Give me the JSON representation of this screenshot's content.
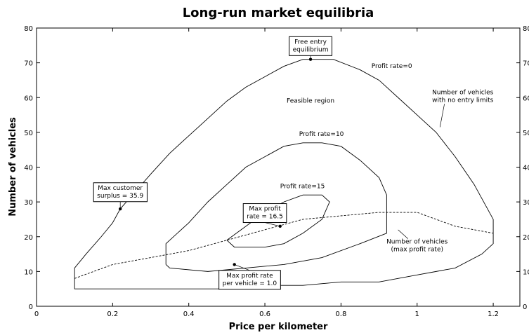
{
  "chart_data": {
    "type": "line",
    "title": "Long-run market equilibria",
    "xlabel": "Price per kilometer",
    "ylabel": "Number of vehicles",
    "xlim": [
      0,
      1.27
    ],
    "ylim": [
      0,
      80
    ],
    "xticks": [
      0,
      0.2,
      0.4,
      0.6,
      0.8,
      1,
      1.2
    ],
    "yticks": [
      0,
      10,
      20,
      30,
      40,
      50,
      60,
      70,
      80
    ],
    "y2lim": [
      0,
      80
    ],
    "y2ticks": [
      0,
      10,
      20,
      30,
      40,
      50,
      60,
      70,
      80
    ],
    "series": [
      {
        "name": "Profit rate=0",
        "color": "#000000",
        "dashed": false,
        "x": [
          0.1,
          0.1,
          0.13,
          0.17,
          0.2,
          0.22,
          0.26,
          0.3,
          0.35,
          0.4,
          0.45,
          0.5,
          0.55,
          0.6,
          0.65,
          0.7,
          0.78,
          0.85,
          0.9,
          0.95,
          1.0,
          1.05,
          1.1,
          1.15,
          1.2,
          1.2,
          1.17,
          1.1,
          1.05,
          1.0,
          0.9,
          0.8,
          0.7,
          0.6,
          0.5,
          0.3,
          0.1,
          0.1
        ],
        "values": [
          8,
          11,
          15,
          20,
          24,
          28,
          33,
          38,
          44,
          49,
          54,
          59,
          63,
          66,
          69,
          71,
          71,
          68,
          65,
          60,
          55,
          50,
          43,
          35,
          25,
          18,
          15,
          11,
          10,
          9,
          7,
          7,
          6,
          6,
          5,
          5,
          5,
          8
        ]
      },
      {
        "name": "Profit rate=10",
        "color": "#000000",
        "dashed": false,
        "x": [
          0.34,
          0.34,
          0.4,
          0.45,
          0.5,
          0.55,
          0.6,
          0.65,
          0.7,
          0.75,
          0.8,
          0.85,
          0.9,
          0.92,
          0.92,
          0.85,
          0.75,
          0.65,
          0.55,
          0.45,
          0.35,
          0.34
        ],
        "values": [
          12,
          18,
          24,
          30,
          35,
          40,
          43,
          46,
          47,
          47,
          46,
          42,
          37,
          32,
          21,
          18,
          14,
          12,
          11,
          10,
          11,
          12
        ]
      },
      {
        "name": "Profit rate=15",
        "color": "#000000",
        "dashed": false,
        "x": [
          0.5,
          0.55,
          0.6,
          0.65,
          0.7,
          0.75,
          0.77,
          0.75,
          0.7,
          0.65,
          0.6,
          0.52,
          0.5
        ],
        "values": [
          19,
          23,
          27,
          30,
          32,
          32,
          30,
          25,
          21,
          18,
          17,
          17,
          19
        ]
      },
      {
        "color": "#000000",
        "dashed": true,
        "x": [
          0.1,
          0.15,
          0.2,
          0.3,
          0.4,
          0.5,
          0.6,
          0.7,
          0.8,
          0.9,
          1.0,
          1.05,
          1.1,
          1.2
        ],
        "values": [
          8,
          10,
          12,
          14,
          16,
          19,
          22,
          25,
          26,
          27,
          27,
          25,
          23,
          21
        ]
      }
    ],
    "points": [
      {
        "x": 0.22,
        "y": 28,
        "label": [
          "Max customer",
          "surplus = 35.9"
        ]
      },
      {
        "x": 0.72,
        "y": 71,
        "label": [
          "Free entry",
          "equilibrium"
        ]
      },
      {
        "x": 0.64,
        "y": 23,
        "label": [
          "Max profit",
          "rate = 16.5"
        ]
      },
      {
        "x": 0.52,
        "y": 12,
        "label": [
          "Max profit rate",
          "per vehicle = 1.0"
        ]
      }
    ],
    "annotations": [
      [
        "Feasible region"
      ],
      [
        "Number of vehicles",
        "with no entry limits"
      ],
      [
        "Number of vehicles",
        "(max profit rate)"
      ]
    ]
  }
}
